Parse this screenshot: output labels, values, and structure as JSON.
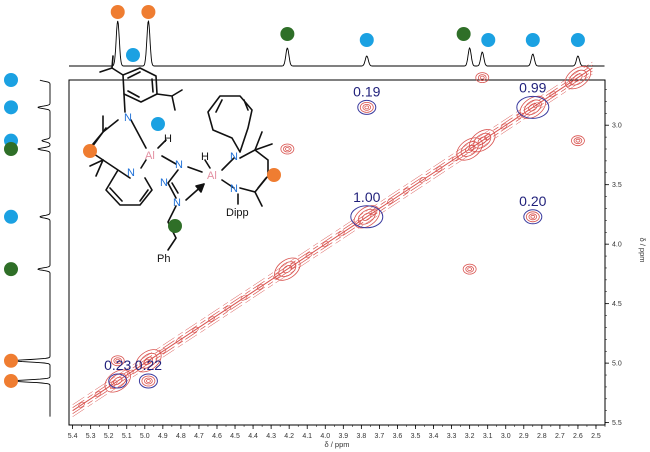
{
  "chart_data": {
    "type": "scatter",
    "title": "",
    "xlabel": "δ / ppm",
    "ylabel": "δ / ppm",
    "xlim": [
      5.42,
      2.45
    ],
    "ylim": [
      2.62,
      5.52
    ],
    "x_ticks": [
      "5.4",
      "5.3",
      "5.2",
      "5.1",
      "5.0",
      "4.9",
      "4.8",
      "4.7",
      "4.6",
      "4.5",
      "4.4",
      "4.3",
      "4.2",
      "4.1",
      "4.0",
      "3.9",
      "3.8",
      "3.7",
      "3.6",
      "3.5",
      "3.4",
      "3.3",
      "3.2",
      "3.1",
      "3.0",
      "2.9",
      "2.8",
      "2.7",
      "2.6",
      "2.5"
    ],
    "y_ticks": [
      "3.0",
      "3.5",
      "4.0",
      "4.5",
      "5.0",
      "5.5"
    ],
    "diagonal_peaks": [
      {
        "x": 5.15,
        "y": 5.15
      },
      {
        "x": 4.98,
        "y": 4.98
      },
      {
        "x": 4.21,
        "y": 4.21
      },
      {
        "x": 3.77,
        "y": 3.77
      },
      {
        "x": 3.2,
        "y": 3.2
      },
      {
        "x": 3.13,
        "y": 3.13
      },
      {
        "x": 2.85,
        "y": 2.85
      },
      {
        "x": 2.6,
        "y": 2.6
      }
    ],
    "cross_peaks": [
      {
        "x": 3.77,
        "y": 2.85
      },
      {
        "x": 2.85,
        "y": 3.77
      },
      {
        "x": 5.15,
        "y": 4.98
      },
      {
        "x": 4.98,
        "y": 5.15
      },
      {
        "x": 4.21,
        "y": 3.2
      },
      {
        "x": 3.2,
        "y": 4.21
      },
      {
        "x": 3.13,
        "y": 2.6
      },
      {
        "x": 2.6,
        "y": 3.13
      }
    ],
    "integration_labels": [
      {
        "text": "0.19",
        "x": 3.77,
        "y": 2.85
      },
      {
        "text": "0.99",
        "x": 2.85,
        "y": 2.85
      },
      {
        "text": "1.00",
        "x": 3.77,
        "y": 3.77
      },
      {
        "text": "0.20",
        "x": 2.85,
        "y": 3.77
      },
      {
        "text": "0.23",
        "x": 5.15,
        "y": 5.15
      },
      {
        "text": "0.22",
        "x": 4.98,
        "y": 5.15
      }
    ],
    "projection_peaks_top": [
      {
        "ppm": 5.15,
        "color": "orange"
      },
      {
        "ppm": 4.98,
        "color": "orange"
      },
      {
        "ppm": 4.21,
        "color": "green"
      },
      {
        "ppm": 3.77,
        "color": "blue"
      },
      {
        "ppm": 3.2,
        "color": "green"
      },
      {
        "ppm": 3.13,
        "color": "blue"
      },
      {
        "ppm": 2.85,
        "color": "blue"
      },
      {
        "ppm": 2.6,
        "color": "blue"
      }
    ],
    "projection_peaks_left": [
      {
        "ppm": 2.62,
        "color": "blue"
      },
      {
        "ppm": 2.85,
        "color": "blue"
      },
      {
        "ppm": 3.13,
        "color": "blue"
      },
      {
        "ppm": 3.2,
        "color": "green"
      },
      {
        "ppm": 3.77,
        "color": "blue"
      },
      {
        "ppm": 4.21,
        "color": "green"
      },
      {
        "ppm": 4.98,
        "color": "orange"
      },
      {
        "ppm": 5.15,
        "color": "orange"
      }
    ],
    "grid": false,
    "legend": "none"
  },
  "colors": {
    "orange": "#ef7d31",
    "blue": "#1ba1e2",
    "green": "#2f6f28",
    "contour": "#d9534f",
    "circle": "#3a3a9e",
    "aluminium": "#e38fa1",
    "nitrogen": "#1e6fd6"
  },
  "structure": {
    "atoms": {
      "al1": "Al",
      "al2": "Al",
      "h1": "H",
      "h2": "H",
      "n1": "N",
      "n2": "N",
      "n3": "N",
      "n4": "N",
      "n5": "N",
      "n6": "N",
      "n7": "N"
    },
    "labels": {
      "dipp": "Dipp",
      "ph": "Ph"
    }
  }
}
